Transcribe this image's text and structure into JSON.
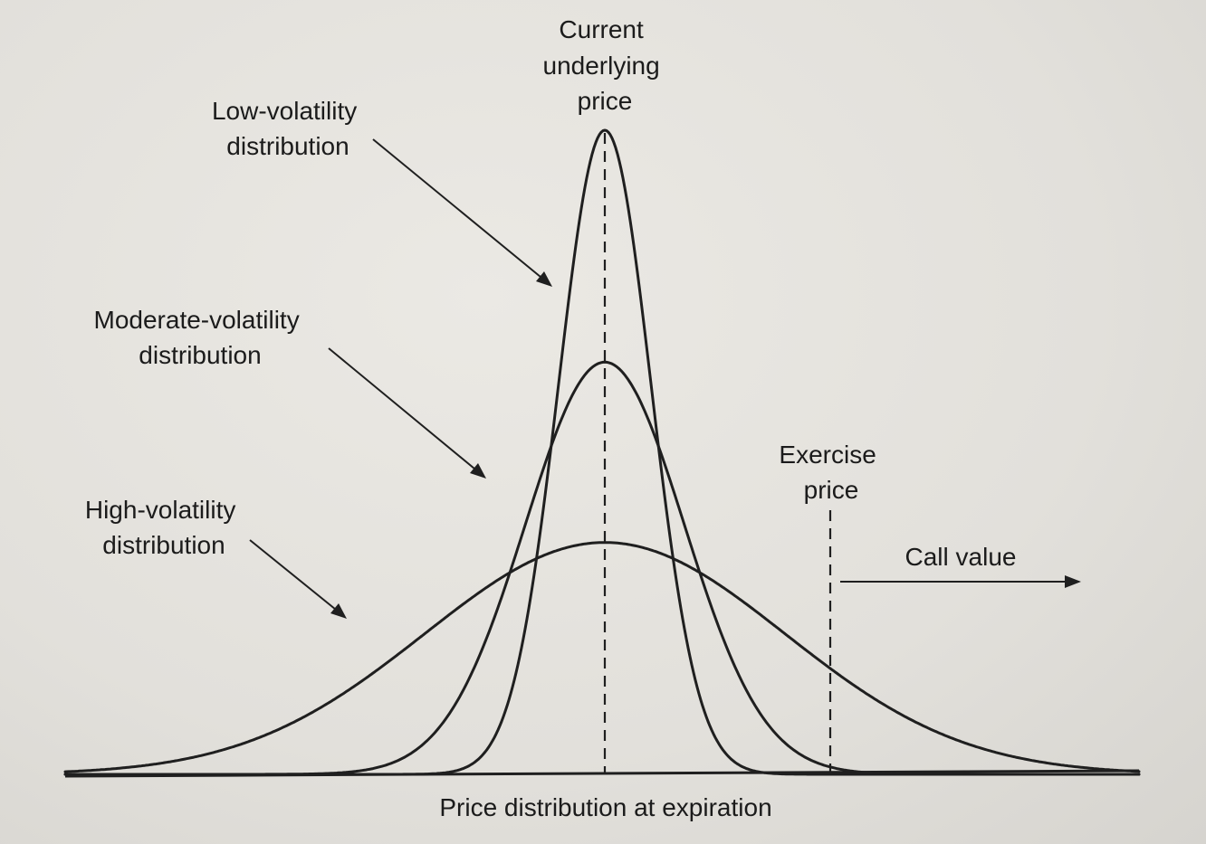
{
  "labels": {
    "current_price": [
      "Current",
      "underlying",
      "price"
    ],
    "low_vol": [
      "Low-volatility",
      "distribution"
    ],
    "moderate_vol": [
      "Moderate-volatility",
      "distribution"
    ],
    "high_vol": [
      "High-volatility",
      "distribution"
    ],
    "exercise_price": [
      "Exercise",
      "price"
    ],
    "call_value": "Call value",
    "x_axis": "Price distribution at expiration"
  },
  "distributions": [
    {
      "id": "low",
      "relative_peak": 1.0,
      "relative_spread": 1.0
    },
    {
      "id": "moderate",
      "relative_peak": 0.64,
      "relative_spread": 1.72
    },
    {
      "id": "high",
      "relative_peak": 0.36,
      "relative_spread": 3.9
    }
  ],
  "colors": {
    "ink": "#1f1f1f",
    "paper": "#e3e1dc"
  }
}
